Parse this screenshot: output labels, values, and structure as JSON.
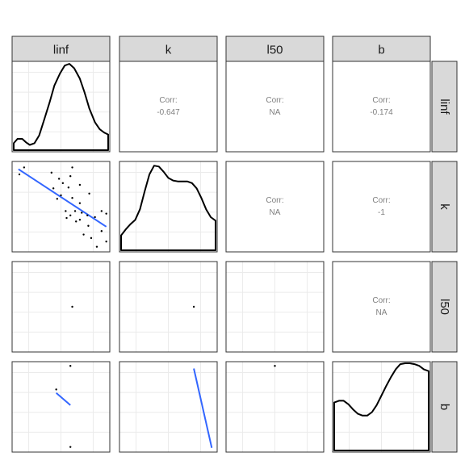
{
  "chart_data": {
    "type": "scatter",
    "title": "",
    "variables": [
      "linf",
      "k",
      "l50",
      "b"
    ],
    "corr_label": "Corr:",
    "correlations": [
      {
        "row": "linf",
        "col": "k",
        "value": "-0.647"
      },
      {
        "row": "linf",
        "col": "l50",
        "value": "NA"
      },
      {
        "row": "linf",
        "col": "b",
        "value": "-0.174"
      },
      {
        "row": "k",
        "col": "l50",
        "value": "NA"
      },
      {
        "row": "k",
        "col": "b",
        "value": "-1"
      },
      {
        "row": "l50",
        "col": "b",
        "value": "NA"
      }
    ],
    "densities": {
      "linf": [
        [
          0.0,
          0.08
        ],
        [
          0.04,
          0.13
        ],
        [
          0.09,
          0.13
        ],
        [
          0.13,
          0.09
        ],
        [
          0.17,
          0.06
        ],
        [
          0.22,
          0.08
        ],
        [
          0.27,
          0.17
        ],
        [
          0.32,
          0.34
        ],
        [
          0.38,
          0.55
        ],
        [
          0.43,
          0.74
        ],
        [
          0.49,
          0.88
        ],
        [
          0.54,
          0.97
        ],
        [
          0.59,
          0.99
        ],
        [
          0.64,
          0.94
        ],
        [
          0.7,
          0.82
        ],
        [
          0.75,
          0.66
        ],
        [
          0.8,
          0.48
        ],
        [
          0.86,
          0.32
        ],
        [
          0.91,
          0.24
        ],
        [
          0.96,
          0.2
        ],
        [
          1.0,
          0.18
        ]
      ],
      "k": [
        [
          0.0,
          0.17
        ],
        [
          0.05,
          0.24
        ],
        [
          0.1,
          0.3
        ],
        [
          0.15,
          0.35
        ],
        [
          0.2,
          0.47
        ],
        [
          0.25,
          0.68
        ],
        [
          0.3,
          0.87
        ],
        [
          0.35,
          0.97
        ],
        [
          0.4,
          0.96
        ],
        [
          0.45,
          0.9
        ],
        [
          0.5,
          0.83
        ],
        [
          0.55,
          0.8
        ],
        [
          0.6,
          0.79
        ],
        [
          0.65,
          0.79
        ],
        [
          0.7,
          0.79
        ],
        [
          0.75,
          0.77
        ],
        [
          0.8,
          0.71
        ],
        [
          0.85,
          0.6
        ],
        [
          0.9,
          0.47
        ],
        [
          0.95,
          0.38
        ],
        [
          1.0,
          0.34
        ]
      ],
      "b": [
        [
          0.0,
          0.55
        ],
        [
          0.05,
          0.57
        ],
        [
          0.1,
          0.57
        ],
        [
          0.15,
          0.53
        ],
        [
          0.2,
          0.47
        ],
        [
          0.25,
          0.42
        ],
        [
          0.3,
          0.4
        ],
        [
          0.35,
          0.4
        ],
        [
          0.4,
          0.44
        ],
        [
          0.45,
          0.52
        ],
        [
          0.5,
          0.63
        ],
        [
          0.55,
          0.74
        ],
        [
          0.6,
          0.84
        ],
        [
          0.65,
          0.93
        ],
        [
          0.7,
          0.99
        ],
        [
          0.75,
          1.0
        ],
        [
          0.8,
          1.0
        ],
        [
          0.85,
          0.99
        ],
        [
          0.9,
          0.97
        ],
        [
          0.95,
          0.93
        ],
        [
          1.0,
          0.91
        ]
      ]
    },
    "scatter": {
      "k_vs_linf": {
        "points": [
          [
            0.06,
            0.87
          ],
          [
            0.11,
            0.95
          ],
          [
            0.4,
            0.89
          ],
          [
            0.48,
            0.82
          ],
          [
            0.52,
            0.77
          ],
          [
            0.42,
            0.71
          ],
          [
            0.58,
            0.72
          ],
          [
            0.6,
            0.85
          ],
          [
            0.62,
            0.95
          ],
          [
            0.7,
            0.75
          ],
          [
            0.62,
            0.6
          ],
          [
            0.8,
            0.65
          ],
          [
            0.5,
            0.63
          ],
          [
            0.46,
            0.59
          ],
          [
            0.7,
            0.54
          ],
          [
            0.55,
            0.45
          ],
          [
            0.65,
            0.45
          ],
          [
            0.72,
            0.43
          ],
          [
            0.78,
            0.4
          ],
          [
            0.86,
            0.38
          ],
          [
            0.93,
            0.45
          ],
          [
            0.98,
            0.42
          ],
          [
            0.6,
            0.4
          ],
          [
            0.56,
            0.37
          ],
          [
            0.66,
            0.33
          ],
          [
            0.7,
            0.35
          ],
          [
            0.79,
            0.28
          ],
          [
            0.93,
            0.22
          ],
          [
            0.74,
            0.18
          ],
          [
            0.82,
            0.14
          ],
          [
            0.98,
            0.1
          ],
          [
            0.88,
            0.04
          ]
        ],
        "fit": [
          [
            0.05,
            0.93
          ],
          [
            0.98,
            0.27
          ]
        ]
      },
      "l50_vs_linf": {
        "points": [
          [
            0.62,
            0.5
          ]
        ]
      },
      "l50_vs_k": {
        "points": [
          [
            0.77,
            0.5
          ]
        ]
      },
      "b_vs_linf": {
        "points": [
          [
            0.6,
            0.97
          ],
          [
            0.45,
            0.7
          ],
          [
            0.6,
            0.04
          ]
        ],
        "fit": [
          [
            0.45,
            0.66
          ],
          [
            0.6,
            0.52
          ]
        ]
      },
      "b_vs_k": {
        "points": [],
        "fit": [
          [
            0.77,
            0.94
          ],
          [
            0.96,
            0.03
          ]
        ]
      },
      "b_vs_l50": {
        "points": [
          [
            0.5,
            0.97
          ]
        ]
      }
    }
  }
}
